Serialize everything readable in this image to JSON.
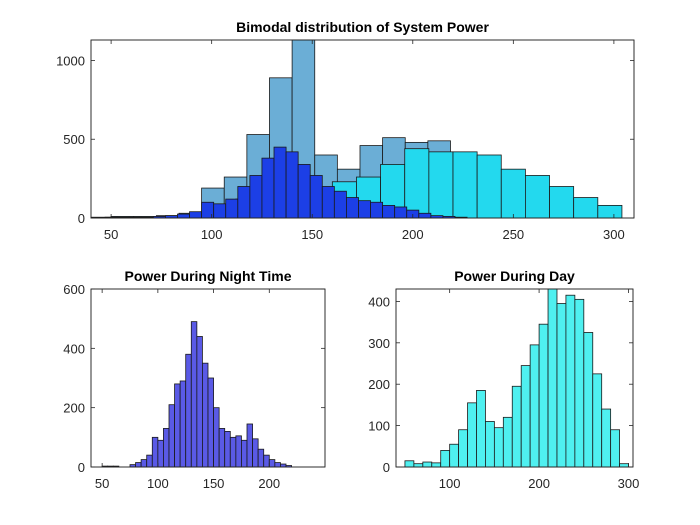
{
  "chart_data": [
    {
      "type": "bar",
      "title": "Bimodal distribution of System Power",
      "xlabel": "",
      "ylabel": "",
      "xlim": [
        40,
        310
      ],
      "ylim": [
        0,
        1130
      ],
      "xticks": [
        50,
        100,
        150,
        200,
        250,
        300
      ],
      "yticks": [
        0,
        500,
        1000
      ],
      "grid": false,
      "series": [
        {
          "color": "#6baed6",
          "bins": [
            {
              "x0": 50,
              "x1": 61.25,
              "value": 10
            },
            {
              "x0": 61.25,
              "x1": 72.5,
              "value": 10
            },
            {
              "x0": 72.5,
              "x1": 83.75,
              "value": 15
            },
            {
              "x0": 83.75,
              "x1": 95,
              "value": 30
            },
            {
              "x0": 95,
              "x1": 106.25,
              "value": 190
            },
            {
              "x0": 106.25,
              "x1": 117.5,
              "value": 260
            },
            {
              "x0": 117.5,
              "x1": 128.75,
              "value": 530
            },
            {
              "x0": 128.75,
              "x1": 140,
              "value": 890
            },
            {
              "x0": 140,
              "x1": 151.25,
              "value": 1130
            },
            {
              "x0": 151.25,
              "x1": 162.5,
              "value": 400
            },
            {
              "x0": 162.5,
              "x1": 173.75,
              "value": 310
            },
            {
              "x0": 173.75,
              "x1": 185,
              "value": 460
            },
            {
              "x0": 185,
              "x1": 196.25,
              "value": 510
            },
            {
              "x0": 196.25,
              "x1": 207.5,
              "value": 480
            },
            {
              "x0": 207.5,
              "x1": 218.75,
              "value": 490
            }
          ]
        },
        {
          "color": "#23d9ee",
          "bins": [
            {
              "x0": 40,
              "x1": 52,
              "value": 5
            },
            {
              "x0": 52,
              "x1": 64,
              "value": 5
            },
            {
              "x0": 64,
              "x1": 76,
              "value": 5
            },
            {
              "x0": 76,
              "x1": 88,
              "value": 10
            },
            {
              "x0": 88,
              "x1": 100,
              "value": 15
            },
            {
              "x0": 100,
              "x1": 112,
              "value": 50
            },
            {
              "x0": 112,
              "x1": 124,
              "value": 120
            },
            {
              "x0": 124,
              "x1": 136,
              "value": 160
            },
            {
              "x0": 136,
              "x1": 148,
              "value": 170
            },
            {
              "x0": 148,
              "x1": 160,
              "value": 100
            },
            {
              "x0": 160,
              "x1": 172,
              "value": 230
            },
            {
              "x0": 172,
              "x1": 184,
              "value": 260
            },
            {
              "x0": 184,
              "x1": 196,
              "value": 340
            },
            {
              "x0": 196,
              "x1": 208,
              "value": 440
            },
            {
              "x0": 208,
              "x1": 220,
              "value": 420
            },
            {
              "x0": 220,
              "x1": 232,
              "value": 420
            },
            {
              "x0": 232,
              "x1": 244,
              "value": 400
            },
            {
              "x0": 244,
              "x1": 256,
              "value": 310
            },
            {
              "x0": 256,
              "x1": 268,
              "value": 270
            },
            {
              "x0": 268,
              "x1": 280,
              "value": 200
            },
            {
              "x0": 280,
              "x1": 292,
              "value": 130
            },
            {
              "x0": 292,
              "x1": 304,
              "value": 80
            }
          ]
        },
        {
          "color": "#1c3fe6",
          "bins": [
            {
              "x0": 47,
              "x1": 53,
              "value": 5
            },
            {
              "x0": 53,
              "x1": 59,
              "value": 5
            },
            {
              "x0": 59,
              "x1": 65,
              "value": 5
            },
            {
              "x0": 65,
              "x1": 71,
              "value": 5
            },
            {
              "x0": 71,
              "x1": 77,
              "value": 10
            },
            {
              "x0": 77,
              "x1": 83,
              "value": 15
            },
            {
              "x0": 83,
              "x1": 89,
              "value": 25
            },
            {
              "x0": 89,
              "x1": 95,
              "value": 40
            },
            {
              "x0": 95,
              "x1": 101,
              "value": 100
            },
            {
              "x0": 101,
              "x1": 107,
              "value": 90
            },
            {
              "x0": 107,
              "x1": 113,
              "value": 120
            },
            {
              "x0": 113,
              "x1": 119,
              "value": 200
            },
            {
              "x0": 119,
              "x1": 125,
              "value": 270
            },
            {
              "x0": 125,
              "x1": 131,
              "value": 380
            },
            {
              "x0": 131,
              "x1": 137,
              "value": 450
            },
            {
              "x0": 137,
              "x1": 143,
              "value": 420
            },
            {
              "x0": 143,
              "x1": 149,
              "value": 340
            },
            {
              "x0": 149,
              "x1": 155,
              "value": 270
            },
            {
              "x0": 155,
              "x1": 161,
              "value": 200
            },
            {
              "x0": 161,
              "x1": 167,
              "value": 170
            },
            {
              "x0": 167,
              "x1": 173,
              "value": 130
            },
            {
              "x0": 173,
              "x1": 179,
              "value": 110
            },
            {
              "x0": 179,
              "x1": 185,
              "value": 100
            },
            {
              "x0": 185,
              "x1": 191,
              "value": 80
            },
            {
              "x0": 191,
              "x1": 197,
              "value": 70
            },
            {
              "x0": 197,
              "x1": 203,
              "value": 50
            },
            {
              "x0": 203,
              "x1": 209,
              "value": 30
            },
            {
              "x0": 209,
              "x1": 215,
              "value": 15
            },
            {
              "x0": 215,
              "x1": 221,
              "value": 10
            },
            {
              "x0": 221,
              "x1": 227,
              "value": 5
            }
          ]
        }
      ]
    },
    {
      "type": "bar",
      "title": "Power During Night Time",
      "xlabel": "",
      "ylabel": "",
      "xlim": [
        40,
        250
      ],
      "ylim": [
        0,
        600
      ],
      "xticks": [
        50,
        100,
        150,
        200
      ],
      "yticks": [
        0,
        200,
        400,
        600
      ],
      "grid": false,
      "series": [
        {
          "color": "#5a5ae6",
          "bins": [
            {
              "x0": 50,
              "x1": 55,
              "value": 3
            },
            {
              "x0": 55,
              "x1": 60,
              "value": 3
            },
            {
              "x0": 60,
              "x1": 65,
              "value": 3
            },
            {
              "x0": 75,
              "x1": 80,
              "value": 8
            },
            {
              "x0": 80,
              "x1": 85,
              "value": 15
            },
            {
              "x0": 85,
              "x1": 90,
              "value": 25
            },
            {
              "x0": 90,
              "x1": 95,
              "value": 40
            },
            {
              "x0": 95,
              "x1": 100,
              "value": 100
            },
            {
              "x0": 100,
              "x1": 105,
              "value": 90
            },
            {
              "x0": 105,
              "x1": 110,
              "value": 130
            },
            {
              "x0": 110,
              "x1": 115,
              "value": 210
            },
            {
              "x0": 115,
              "x1": 120,
              "value": 280
            },
            {
              "x0": 120,
              "x1": 125,
              "value": 290
            },
            {
              "x0": 125,
              "x1": 130,
              "value": 380
            },
            {
              "x0": 130,
              "x1": 135,
              "value": 490
            },
            {
              "x0": 135,
              "x1": 140,
              "value": 440
            },
            {
              "x0": 140,
              "x1": 145,
              "value": 350
            },
            {
              "x0": 145,
              "x1": 150,
              "value": 300
            },
            {
              "x0": 150,
              "x1": 155,
              "value": 200
            },
            {
              "x0": 155,
              "x1": 160,
              "value": 130
            },
            {
              "x0": 160,
              "x1": 165,
              "value": 120
            },
            {
              "x0": 165,
              "x1": 170,
              "value": 100
            },
            {
              "x0": 170,
              "x1": 175,
              "value": 105
            },
            {
              "x0": 175,
              "x1": 180,
              "value": 90
            },
            {
              "x0": 180,
              "x1": 185,
              "value": 145
            },
            {
              "x0": 185,
              "x1": 190,
              "value": 95
            },
            {
              "x0": 190,
              "x1": 195,
              "value": 60
            },
            {
              "x0": 195,
              "x1": 200,
              "value": 40
            },
            {
              "x0": 200,
              "x1": 205,
              "value": 25
            },
            {
              "x0": 205,
              "x1": 210,
              "value": 15
            },
            {
              "x0": 210,
              "x1": 215,
              "value": 10
            },
            {
              "x0": 215,
              "x1": 220,
              "value": 5
            }
          ]
        }
      ]
    },
    {
      "type": "bar",
      "title": "Power During Day",
      "xlabel": "",
      "ylabel": "",
      "xlim": [
        40,
        305
      ],
      "ylim": [
        0,
        430
      ],
      "xticks": [
        100,
        200,
        300
      ],
      "yticks": [
        0,
        100,
        200,
        300,
        400
      ],
      "grid": false,
      "series": [
        {
          "color": "#4ff0f0",
          "bins": [
            {
              "x0": 50,
              "x1": 60,
              "value": 15
            },
            {
              "x0": 60,
              "x1": 70,
              "value": 8
            },
            {
              "x0": 70,
              "x1": 80,
              "value": 12
            },
            {
              "x0": 80,
              "x1": 90,
              "value": 10
            },
            {
              "x0": 90,
              "x1": 100,
              "value": 40
            },
            {
              "x0": 100,
              "x1": 110,
              "value": 55
            },
            {
              "x0": 110,
              "x1": 120,
              "value": 90
            },
            {
              "x0": 120,
              "x1": 130,
              "value": 155
            },
            {
              "x0": 130,
              "x1": 140,
              "value": 185
            },
            {
              "x0": 140,
              "x1": 150,
              "value": 110
            },
            {
              "x0": 150,
              "x1": 160,
              "value": 95
            },
            {
              "x0": 160,
              "x1": 170,
              "value": 120
            },
            {
              "x0": 170,
              "x1": 180,
              "value": 195
            },
            {
              "x0": 180,
              "x1": 190,
              "value": 245
            },
            {
              "x0": 190,
              "x1": 200,
              "value": 295
            },
            {
              "x0": 200,
              "x1": 210,
              "value": 345
            },
            {
              "x0": 210,
              "x1": 220,
              "value": 435
            },
            {
              "x0": 220,
              "x1": 230,
              "value": 395
            },
            {
              "x0": 230,
              "x1": 240,
              "value": 415
            },
            {
              "x0": 240,
              "x1": 250,
              "value": 405
            },
            {
              "x0": 250,
              "x1": 260,
              "value": 325
            },
            {
              "x0": 260,
              "x1": 270,
              "value": 225
            },
            {
              "x0": 270,
              "x1": 280,
              "value": 140
            },
            {
              "x0": 280,
              "x1": 290,
              "value": 90
            },
            {
              "x0": 290,
              "x1": 300,
              "value": 8
            }
          ]
        }
      ]
    }
  ]
}
